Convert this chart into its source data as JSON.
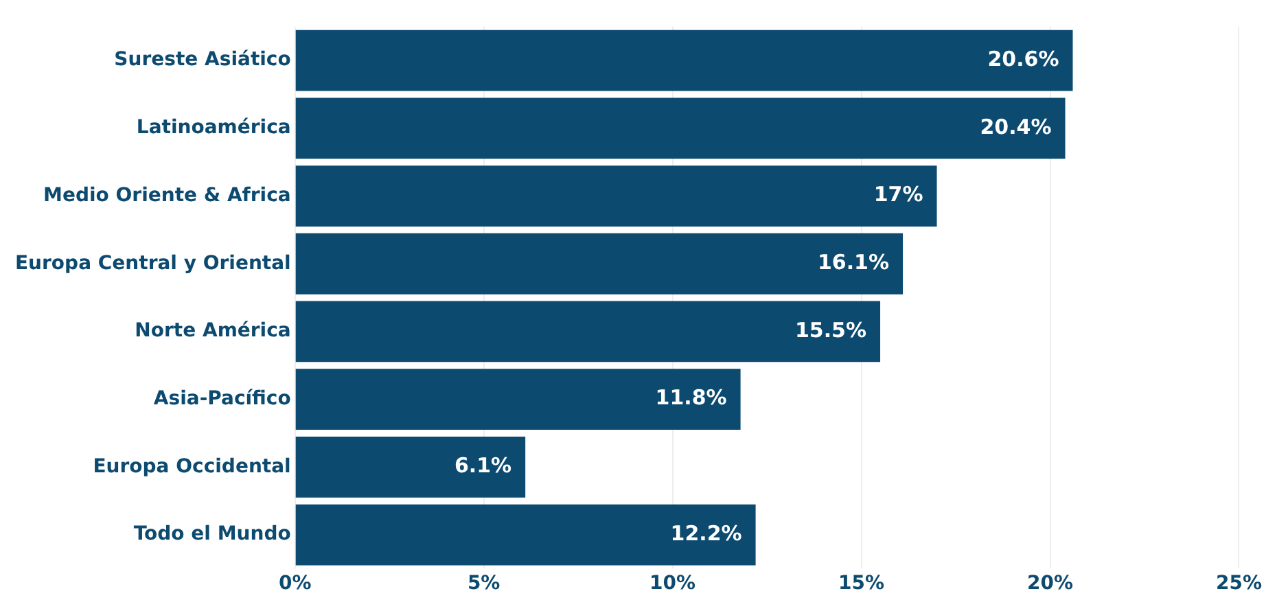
{
  "chart_data": {
    "type": "bar",
    "orientation": "horizontal",
    "categories": [
      "Sureste Asiático",
      "Latinoamérica",
      "Medio Oriente & Africa",
      "Europa Central y Oriental",
      "Norte América",
      "Asia-Pacífico",
      "Europa Occidental",
      "Todo el Mundo"
    ],
    "values": [
      20.6,
      20.4,
      17,
      16.1,
      15.5,
      11.8,
      6.1,
      12.2
    ],
    "value_labels": [
      "20.6%",
      "20.4%",
      "17%",
      "16.1%",
      "15.5%",
      "11.8%",
      "6.1%",
      "12.2%"
    ],
    "color": "#0c4a70",
    "xlim": [
      0,
      25
    ],
    "xticks": [
      {
        "value": 0,
        "label": "0%"
      },
      {
        "value": 5,
        "label": "5%"
      },
      {
        "value": 10,
        "label": "10%"
      },
      {
        "value": 15,
        "label": "15%"
      },
      {
        "value": 20,
        "label": "20%"
      },
      {
        "value": 25,
        "label": "25%"
      }
    ],
    "grid": "x"
  }
}
